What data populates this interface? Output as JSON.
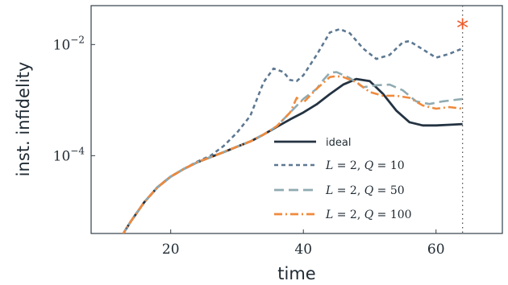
{
  "chart_data": {
    "type": "line",
    "title": "",
    "xlabel": "time",
    "ylabel": "inst. infidelity",
    "xlim": [
      8,
      70
    ],
    "ylim_log10": [
      -5.4,
      -1.3
    ],
    "y_scale": "log",
    "x_ticks": [
      {
        "value": 20,
        "label": "20"
      },
      {
        "value": 40,
        "label": "40"
      },
      {
        "value": 60,
        "label": "60"
      }
    ],
    "y_ticks": [
      {
        "value": 0.01,
        "label": "10^-2",
        "base": "10",
        "exp": "−2"
      },
      {
        "value": 0.0001,
        "label": "10^-4",
        "base": "10",
        "exp": "−4"
      }
    ],
    "marker": {
      "x": 64,
      "symbol": "*",
      "color": "#f05a2a"
    },
    "legend_position": "bottom-right",
    "series": [
      {
        "name": "ideal",
        "color": "#243342",
        "dash": "solid",
        "x": [
          12.5,
          14,
          16,
          18,
          20,
          22,
          24,
          26,
          28,
          30,
          32,
          34,
          36,
          38,
          40,
          42,
          44,
          46,
          48,
          50,
          52,
          54,
          56,
          58,
          60,
          62,
          64
        ],
        "y": [
          3.4e-06,
          6.6e-06,
          1.45e-05,
          2.7e-05,
          4.2e-05,
          5.8e-05,
          7.6e-05,
          9.4e-05,
          0.000116,
          0.000145,
          0.00018,
          0.00024,
          0.00033,
          0.00045,
          0.0006,
          0.00084,
          0.00128,
          0.0019,
          0.0024,
          0.0022,
          0.0013,
          0.00065,
          0.0004,
          0.00035,
          0.00035,
          0.00036,
          0.00037
        ]
      },
      {
        "name": "L = 2, Q = 10",
        "legend_label": {
          "L": "L",
          "Lval": " = 2, ",
          "Q": "Q",
          "Qval": " = 10"
        },
        "color": "#5d7891",
        "dash": "5 4",
        "x": [
          12.5,
          14,
          16,
          18,
          20,
          22,
          24,
          26,
          28,
          30,
          32,
          34,
          35.5,
          37,
          38,
          39,
          40,
          42,
          44,
          45.5,
          47,
          49,
          51,
          53,
          55,
          56,
          58,
          60,
          62,
          64
        ],
        "y": [
          3.4e-06,
          6.6e-06,
          1.45e-05,
          2.7e-05,
          4.2e-05,
          5.8e-05,
          7.8e-05,
          0.0001,
          0.00015,
          0.00026,
          0.00052,
          0.0021,
          0.0037,
          0.0032,
          0.0023,
          0.0022,
          0.0028,
          0.0065,
          0.0165,
          0.019,
          0.016,
          0.0085,
          0.0055,
          0.0065,
          0.011,
          0.0115,
          0.0082,
          0.0058,
          0.0068,
          0.0085
        ]
      },
      {
        "name": "L = 2, Q = 50",
        "legend_label": {
          "L": "L",
          "Lval": " = 2, ",
          "Q": "Q",
          "Qval": " = 50"
        },
        "color": "#8fabb1",
        "dash": "12 6",
        "x": [
          12.5,
          14,
          16,
          18,
          20,
          22,
          24,
          26,
          28,
          30,
          32,
          34,
          36,
          38,
          40,
          41,
          42,
          43,
          44,
          45,
          47,
          49,
          51,
          53,
          55,
          57,
          59,
          61,
          64
        ],
        "y": [
          3.4e-06,
          6.6e-06,
          1.45e-05,
          2.7e-05,
          4.2e-05,
          5.8e-05,
          7.6e-05,
          9.4e-05,
          0.000116,
          0.000145,
          0.00018,
          0.00024,
          0.00034,
          0.0006,
          0.00105,
          0.0013,
          0.0016,
          0.0023,
          0.0031,
          0.0032,
          0.0025,
          0.0017,
          0.00185,
          0.0019,
          0.0015,
          0.00095,
          0.00085,
          0.00095,
          0.00105
        ]
      },
      {
        "name": "L = 2, Q = 100",
        "legend_label": {
          "L": "L",
          "Lval": " = 2, ",
          "Q": "Q",
          "Qval": " = 100"
        },
        "color": "#f08a3c",
        "dash": "10 4 2 4",
        "x": [
          12.5,
          14,
          16,
          18,
          20,
          22,
          24,
          26,
          28,
          30,
          32,
          34,
          36,
          38,
          39,
          40,
          42,
          44,
          45,
          46,
          48,
          50,
          52,
          54,
          56,
          58,
          60,
          62,
          64
        ],
        "y": [
          3.4e-06,
          6.6e-06,
          1.45e-05,
          2.7e-05,
          4.2e-05,
          5.8e-05,
          7.6e-05,
          9.4e-05,
          0.000116,
          0.000145,
          0.00018,
          0.00024,
          0.00034,
          0.0006,
          0.0011,
          0.0009,
          0.0016,
          0.0026,
          0.0027,
          0.0026,
          0.0021,
          0.0014,
          0.0012,
          0.0012,
          0.0011,
          0.0008,
          0.0007,
          0.00075,
          0.0007
        ]
      }
    ]
  }
}
